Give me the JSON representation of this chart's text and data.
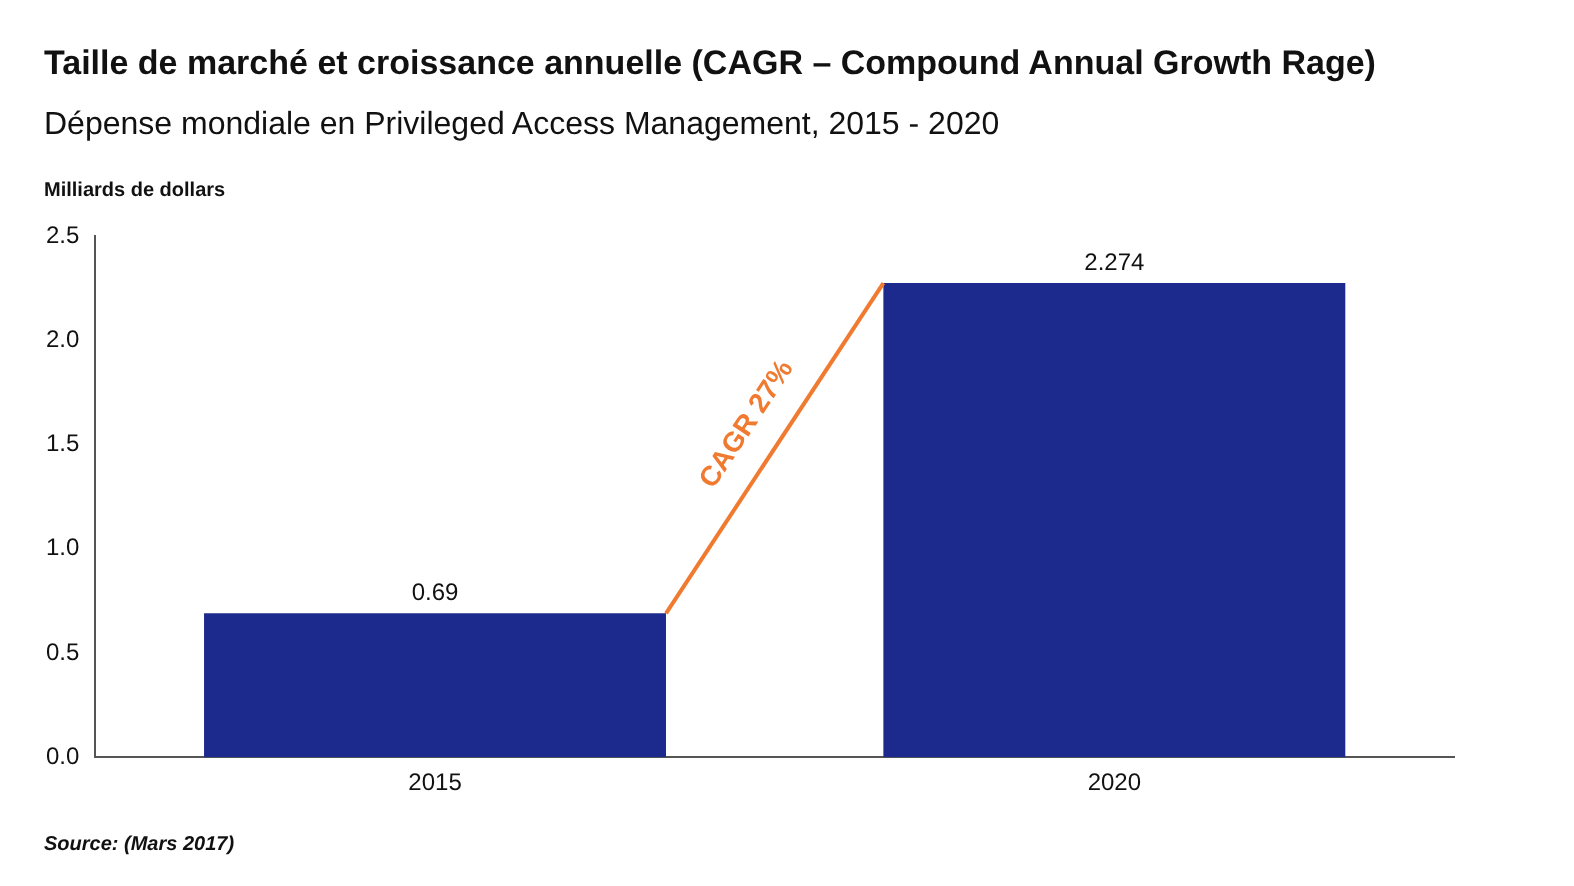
{
  "chart_data": {
    "type": "bar",
    "title": "Taille de marché et croissance annuelle (CAGR – Compound Annual Growth Rage)",
    "subtitle": "Dépense mondiale en Privileged Access Management, 2015 - 2020",
    "ylabel": "Milliards de dollars",
    "categories": [
      "2015",
      "2020"
    ],
    "values": [
      0.69,
      2.274
    ],
    "color": "#1b2a8c",
    "ylim": [
      0,
      2.5
    ],
    "yticks": [
      {
        "value": 0,
        "label": "0.0"
      },
      {
        "value": 0.5,
        "label": "0.5"
      },
      {
        "value": 1,
        "label": "1.0"
      },
      {
        "value": 1.5,
        "label": "1.5"
      },
      {
        "value": 2,
        "label": "2.0"
      },
      {
        "value": 2.5,
        "label": "2.5"
      }
    ],
    "grid": false,
    "legend": false,
    "data_labels": true,
    "annotations": [
      "CAGR 27%",
      "Source: (Mars 2017)"
    ]
  }
}
